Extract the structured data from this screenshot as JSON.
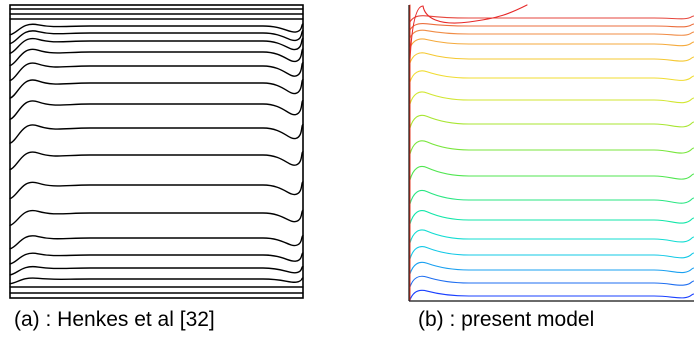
{
  "panels": [
    {
      "id": "a",
      "caption": "(a) : Henkes et al [32]",
      "line_color": "#000000",
      "contour_count": 20
    },
    {
      "id": "b",
      "caption": "(b) : present model",
      "line_colors": [
        "#1a40ff",
        "#1e6ef0",
        "#1aa0f0",
        "#12c8e6",
        "#12dcd2",
        "#12e6a8",
        "#2ae682",
        "#50e650",
        "#78e63c",
        "#a8e632",
        "#d2e632",
        "#f0dc32",
        "#f5c832",
        "#f5aa3c",
        "#f08c46",
        "#eb6e3c",
        "#e6463c",
        "#e62828"
      ]
    }
  ]
}
